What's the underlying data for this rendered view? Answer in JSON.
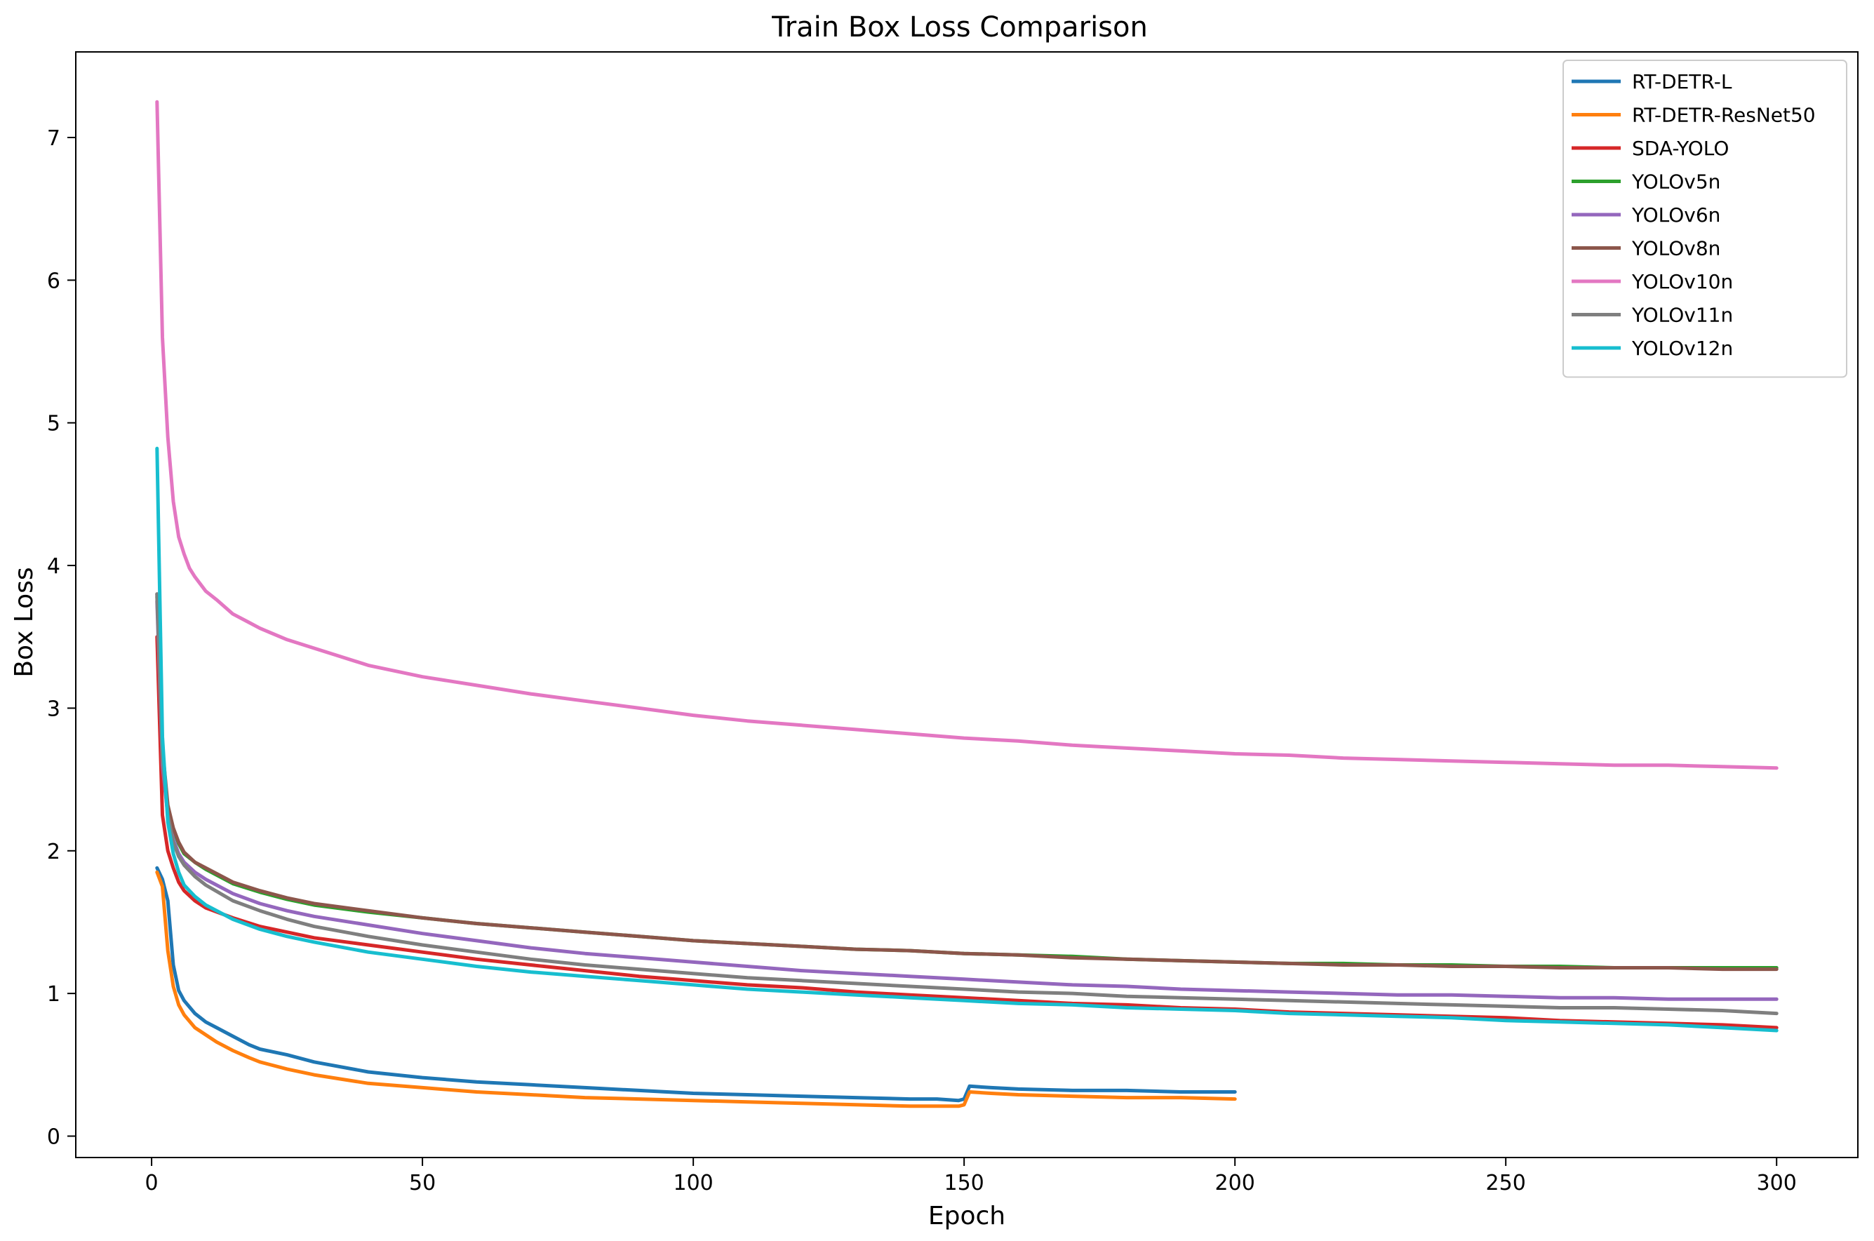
{
  "chart_data": {
    "type": "line",
    "title": "Train Box Loss Comparison",
    "xlabel": "Epoch",
    "ylabel": "Box Loss",
    "xlim": [
      -14,
      315
    ],
    "ylim": [
      -0.15,
      7.6
    ],
    "xticks": [
      0,
      50,
      100,
      150,
      200,
      250,
      300
    ],
    "yticks": [
      0,
      1,
      2,
      3,
      4,
      5,
      6,
      7
    ],
    "grid": false,
    "legend_position": "top-right",
    "series": [
      {
        "name": "RT-DETR-L",
        "color": "#1f77b4",
        "x": [
          1,
          2,
          3,
          4,
          5,
          6,
          8,
          10,
          12,
          15,
          18,
          20,
          25,
          30,
          40,
          50,
          60,
          70,
          80,
          90,
          100,
          110,
          120,
          130,
          140,
          145,
          149,
          150,
          151,
          155,
          160,
          170,
          180,
          190,
          200
        ],
        "y": [
          1.88,
          1.8,
          1.65,
          1.2,
          1.02,
          0.95,
          0.86,
          0.8,
          0.76,
          0.7,
          0.64,
          0.61,
          0.57,
          0.52,
          0.45,
          0.41,
          0.38,
          0.36,
          0.34,
          0.32,
          0.3,
          0.29,
          0.28,
          0.27,
          0.26,
          0.26,
          0.25,
          0.26,
          0.35,
          0.34,
          0.33,
          0.32,
          0.32,
          0.31,
          0.31
        ]
      },
      {
        "name": "RT-DETR-ResNet50",
        "color": "#ff7f0e",
        "x": [
          1,
          2,
          3,
          4,
          5,
          6,
          8,
          10,
          12,
          15,
          18,
          20,
          25,
          30,
          40,
          50,
          60,
          70,
          80,
          90,
          100,
          110,
          120,
          130,
          140,
          145,
          149,
          150,
          151,
          155,
          160,
          170,
          180,
          190,
          200
        ],
        "y": [
          1.85,
          1.75,
          1.3,
          1.05,
          0.92,
          0.85,
          0.76,
          0.71,
          0.66,
          0.6,
          0.55,
          0.52,
          0.47,
          0.43,
          0.37,
          0.34,
          0.31,
          0.29,
          0.27,
          0.26,
          0.25,
          0.24,
          0.23,
          0.22,
          0.21,
          0.21,
          0.21,
          0.22,
          0.31,
          0.3,
          0.29,
          0.28,
          0.27,
          0.27,
          0.26
        ]
      },
      {
        "name": "SDA-YOLO",
        "color": "#d62728",
        "x": [
          1,
          2,
          3,
          4,
          5,
          6,
          8,
          10,
          15,
          20,
          25,
          30,
          40,
          50,
          60,
          70,
          80,
          90,
          100,
          110,
          120,
          130,
          140,
          150,
          160,
          170,
          180,
          190,
          200,
          210,
          220,
          230,
          240,
          250,
          260,
          270,
          280,
          290,
          300
        ],
        "y": [
          3.5,
          2.25,
          2.0,
          1.88,
          1.78,
          1.72,
          1.65,
          1.6,
          1.53,
          1.47,
          1.43,
          1.39,
          1.34,
          1.29,
          1.24,
          1.2,
          1.16,
          1.12,
          1.09,
          1.06,
          1.04,
          1.01,
          0.99,
          0.97,
          0.95,
          0.93,
          0.92,
          0.9,
          0.89,
          0.87,
          0.86,
          0.85,
          0.84,
          0.83,
          0.81,
          0.8,
          0.79,
          0.78,
          0.76
        ]
      },
      {
        "name": "YOLOv5n",
        "color": "#2ca02c",
        "x": [
          1,
          2,
          3,
          4,
          5,
          6,
          8,
          10,
          15,
          20,
          25,
          30,
          40,
          50,
          60,
          70,
          80,
          90,
          100,
          110,
          120,
          130,
          140,
          150,
          160,
          170,
          180,
          190,
          200,
          210,
          220,
          230,
          240,
          250,
          260,
          270,
          280,
          290,
          300
        ],
        "y": [
          3.78,
          2.7,
          2.3,
          2.15,
          2.05,
          1.98,
          1.92,
          1.87,
          1.77,
          1.71,
          1.66,
          1.62,
          1.57,
          1.53,
          1.49,
          1.46,
          1.43,
          1.4,
          1.37,
          1.35,
          1.33,
          1.31,
          1.3,
          1.28,
          1.27,
          1.26,
          1.24,
          1.23,
          1.22,
          1.21,
          1.21,
          1.2,
          1.2,
          1.19,
          1.19,
          1.18,
          1.18,
          1.18,
          1.18
        ]
      },
      {
        "name": "YOLOv6n",
        "color": "#9467bd",
        "x": [
          1,
          2,
          3,
          4,
          5,
          6,
          8,
          10,
          15,
          20,
          25,
          30,
          40,
          50,
          60,
          70,
          80,
          90,
          100,
          110,
          120,
          130,
          140,
          150,
          160,
          170,
          180,
          190,
          200,
          210,
          220,
          230,
          240,
          250,
          260,
          270,
          280,
          290,
          300
        ],
        "y": [
          3.75,
          2.6,
          2.25,
          2.08,
          1.98,
          1.92,
          1.85,
          1.8,
          1.7,
          1.63,
          1.58,
          1.54,
          1.48,
          1.42,
          1.37,
          1.32,
          1.28,
          1.25,
          1.22,
          1.19,
          1.16,
          1.14,
          1.12,
          1.1,
          1.08,
          1.06,
          1.05,
          1.03,
          1.02,
          1.01,
          1.0,
          0.99,
          0.99,
          0.98,
          0.97,
          0.97,
          0.96,
          0.96,
          0.96
        ]
      },
      {
        "name": "YOLOv8n",
        "color": "#8c564b",
        "x": [
          1,
          2,
          3,
          4,
          5,
          6,
          8,
          10,
          15,
          20,
          25,
          30,
          40,
          50,
          60,
          70,
          80,
          90,
          100,
          110,
          120,
          130,
          140,
          150,
          160,
          170,
          180,
          190,
          200,
          210,
          220,
          230,
          240,
          250,
          260,
          270,
          280,
          290,
          300
        ],
        "y": [
          3.8,
          2.72,
          2.32,
          2.16,
          2.06,
          1.99,
          1.92,
          1.88,
          1.78,
          1.72,
          1.67,
          1.63,
          1.58,
          1.53,
          1.49,
          1.46,
          1.43,
          1.4,
          1.37,
          1.35,
          1.33,
          1.31,
          1.3,
          1.28,
          1.27,
          1.25,
          1.24,
          1.23,
          1.22,
          1.21,
          1.2,
          1.2,
          1.19,
          1.19,
          1.18,
          1.18,
          1.18,
          1.17,
          1.17
        ]
      },
      {
        "name": "YOLOv10n",
        "color": "#e377c2",
        "x": [
          1,
          2,
          3,
          4,
          5,
          6,
          7,
          8,
          10,
          12,
          15,
          18,
          20,
          25,
          30,
          40,
          50,
          60,
          70,
          80,
          90,
          100,
          110,
          120,
          130,
          140,
          150,
          160,
          170,
          180,
          190,
          200,
          210,
          220,
          230,
          240,
          250,
          260,
          270,
          280,
          290,
          300
        ],
        "y": [
          7.25,
          5.6,
          4.9,
          4.45,
          4.2,
          4.08,
          3.98,
          3.92,
          3.82,
          3.76,
          3.66,
          3.6,
          3.56,
          3.48,
          3.42,
          3.3,
          3.22,
          3.16,
          3.1,
          3.05,
          3.0,
          2.95,
          2.91,
          2.88,
          2.85,
          2.82,
          2.79,
          2.77,
          2.74,
          2.72,
          2.7,
          2.68,
          2.67,
          2.65,
          2.64,
          2.63,
          2.62,
          2.61,
          2.6,
          2.6,
          2.59,
          2.58
        ]
      },
      {
        "name": "YOLOv11n",
        "color": "#7f7f7f",
        "x": [
          1,
          2,
          3,
          4,
          5,
          6,
          8,
          10,
          15,
          20,
          25,
          30,
          40,
          50,
          60,
          70,
          80,
          90,
          100,
          110,
          120,
          130,
          140,
          150,
          160,
          170,
          180,
          190,
          200,
          210,
          220,
          230,
          240,
          250,
          260,
          270,
          280,
          290,
          300
        ],
        "y": [
          3.8,
          2.65,
          2.25,
          2.06,
          1.96,
          1.9,
          1.82,
          1.76,
          1.65,
          1.58,
          1.52,
          1.47,
          1.4,
          1.34,
          1.29,
          1.24,
          1.2,
          1.17,
          1.14,
          1.11,
          1.09,
          1.07,
          1.05,
          1.03,
          1.01,
          1.0,
          0.98,
          0.97,
          0.96,
          0.95,
          0.94,
          0.93,
          0.92,
          0.91,
          0.9,
          0.9,
          0.89,
          0.88,
          0.86
        ]
      },
      {
        "name": "YOLOv12n",
        "color": "#17becf",
        "x": [
          1,
          2,
          3,
          4,
          5,
          6,
          8,
          10,
          15,
          20,
          25,
          30,
          40,
          50,
          60,
          70,
          80,
          90,
          100,
          110,
          120,
          130,
          140,
          150,
          160,
          170,
          180,
          190,
          200,
          210,
          220,
          230,
          240,
          250,
          260,
          270,
          280,
          290,
          300
        ],
        "y": [
          4.82,
          2.8,
          2.2,
          1.98,
          1.85,
          1.76,
          1.68,
          1.62,
          1.52,
          1.45,
          1.4,
          1.36,
          1.29,
          1.24,
          1.19,
          1.15,
          1.12,
          1.09,
          1.06,
          1.03,
          1.01,
          0.99,
          0.97,
          0.95,
          0.93,
          0.92,
          0.9,
          0.89,
          0.88,
          0.86,
          0.85,
          0.84,
          0.83,
          0.81,
          0.8,
          0.79,
          0.78,
          0.76,
          0.74
        ]
      }
    ]
  }
}
